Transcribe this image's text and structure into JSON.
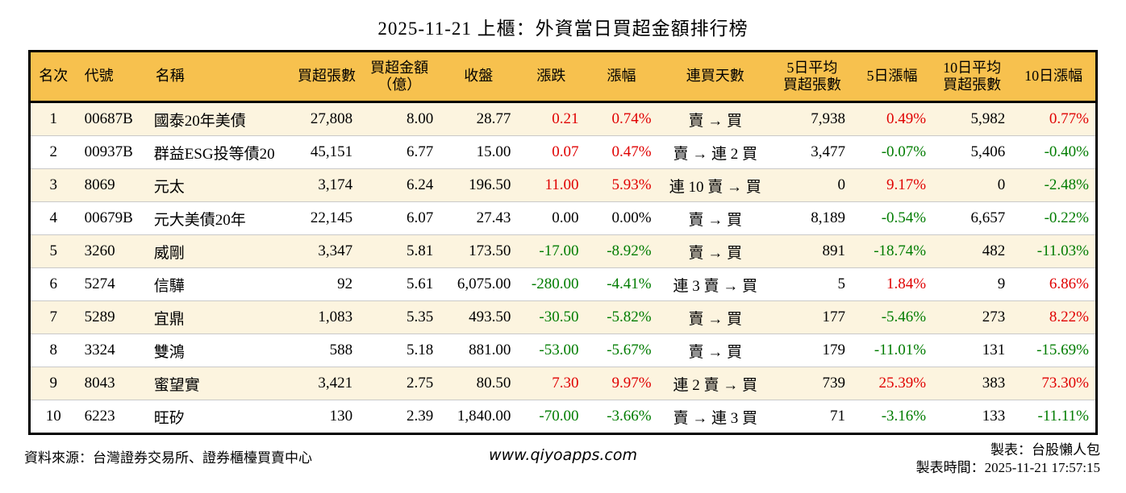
{
  "title": "2025-11-21 上櫃：外資當日買超金額排行榜",
  "colors": {
    "up": "#e00000",
    "down": "#007c00",
    "flat": "#000000",
    "header_bg": "#f7c14e",
    "row_alt_bg": "#fcf4df",
    "border": "#000000"
  },
  "chart_data": {
    "type": "table",
    "title": "2025-11-21 上櫃：外資當日買超金額排行榜",
    "columns": [
      {
        "key": "rank",
        "label_lines": [
          "名次"
        ],
        "colored": false
      },
      {
        "key": "code",
        "label_lines": [
          "代號"
        ],
        "colored": false
      },
      {
        "key": "name",
        "label_lines": [
          "名稱"
        ],
        "colored": false
      },
      {
        "key": "vol",
        "label_lines": [
          "買超張數"
        ],
        "colored": false
      },
      {
        "key": "amt",
        "label_lines": [
          "買超金額",
          "（億）"
        ],
        "colored": false
      },
      {
        "key": "close",
        "label_lines": [
          "收盤"
        ],
        "colored": false
      },
      {
        "key": "chg",
        "label_lines": [
          "漲跌"
        ],
        "colored": true
      },
      {
        "key": "chg_pct",
        "label_lines": [
          "漲幅"
        ],
        "colored": true
      },
      {
        "key": "streak",
        "label_lines": [
          "連買天數"
        ],
        "colored": false
      },
      {
        "key": "avg5",
        "label_lines": [
          "5日平均",
          "買超張數"
        ],
        "colored": false
      },
      {
        "key": "pct5",
        "label_lines": [
          "5日漲幅"
        ],
        "colored": true
      },
      {
        "key": "avg10",
        "label_lines": [
          "10日平均",
          "買超張數"
        ],
        "colored": false
      },
      {
        "key": "pct10",
        "label_lines": [
          "10日漲幅"
        ],
        "colored": true
      }
    ],
    "rows": [
      {
        "rank": "1",
        "code": "00687B",
        "name": "國泰20年美債",
        "vol": "27,808",
        "amt": "8.00",
        "close": "28.77",
        "chg": "0.21",
        "chg_pct": "0.74%",
        "streak": "賣 → 買",
        "avg5": "7,938",
        "pct5": "0.49%",
        "avg10": "5,982",
        "pct10": "0.77%"
      },
      {
        "rank": "2",
        "code": "00937B",
        "name": "群益ESG投等債20",
        "vol": "45,151",
        "amt": "6.77",
        "close": "15.00",
        "chg": "0.07",
        "chg_pct": "0.47%",
        "streak": "賣 → 連 2 買",
        "avg5": "3,477",
        "pct5": "-0.07%",
        "avg10": "5,406",
        "pct10": "-0.40%"
      },
      {
        "rank": "3",
        "code": "8069",
        "name": "元太",
        "vol": "3,174",
        "amt": "6.24",
        "close": "196.50",
        "chg": "11.00",
        "chg_pct": "5.93%",
        "streak": "連 10 賣 → 買",
        "avg5": "0",
        "pct5": "9.17%",
        "avg10": "0",
        "pct10": "-2.48%"
      },
      {
        "rank": "4",
        "code": "00679B",
        "name": "元大美債20年",
        "vol": "22,145",
        "amt": "6.07",
        "close": "27.43",
        "chg": "0.00",
        "chg_pct": "0.00%",
        "streak": "賣 → 買",
        "avg5": "8,189",
        "pct5": "-0.54%",
        "avg10": "6,657",
        "pct10": "-0.22%"
      },
      {
        "rank": "5",
        "code": "3260",
        "name": "威剛",
        "vol": "3,347",
        "amt": "5.81",
        "close": "173.50",
        "chg": "-17.00",
        "chg_pct": "-8.92%",
        "streak": "賣 → 買",
        "avg5": "891",
        "pct5": "-18.74%",
        "avg10": "482",
        "pct10": "-11.03%"
      },
      {
        "rank": "6",
        "code": "5274",
        "name": "信驊",
        "vol": "92",
        "amt": "5.61",
        "close": "6,075.00",
        "chg": "-280.00",
        "chg_pct": "-4.41%",
        "streak": "連 3 賣 → 買",
        "avg5": "5",
        "pct5": "1.84%",
        "avg10": "9",
        "pct10": "6.86%"
      },
      {
        "rank": "7",
        "code": "5289",
        "name": "宜鼎",
        "vol": "1,083",
        "amt": "5.35",
        "close": "493.50",
        "chg": "-30.50",
        "chg_pct": "-5.82%",
        "streak": "賣 → 買",
        "avg5": "177",
        "pct5": "-5.46%",
        "avg10": "273",
        "pct10": "8.22%"
      },
      {
        "rank": "8",
        "code": "3324",
        "name": "雙鴻",
        "vol": "588",
        "amt": "5.18",
        "close": "881.00",
        "chg": "-53.00",
        "chg_pct": "-5.67%",
        "streak": "賣 → 買",
        "avg5": "179",
        "pct5": "-11.01%",
        "avg10": "131",
        "pct10": "-15.69%"
      },
      {
        "rank": "9",
        "code": "8043",
        "name": "蜜望實",
        "vol": "3,421",
        "amt": "2.75",
        "close": "80.50",
        "chg": "7.30",
        "chg_pct": "9.97%",
        "streak": "連 2 賣 → 買",
        "avg5": "739",
        "pct5": "25.39%",
        "avg10": "383",
        "pct10": "73.30%"
      },
      {
        "rank": "10",
        "code": "6223",
        "name": "旺矽",
        "vol": "130",
        "amt": "2.39",
        "close": "1,840.00",
        "chg": "-70.00",
        "chg_pct": "-3.66%",
        "streak": "賣 → 連 3 買",
        "avg5": "71",
        "pct5": "-3.16%",
        "avg10": "133",
        "pct10": "-11.11%"
      }
    ]
  },
  "footer": {
    "source": "資料來源：台灣證券交易所、證券櫃檯買賣中心",
    "website": "www.qiyoapps.com",
    "maker": "製表：台股懶人包",
    "made_time": "製表時間：2025-11-21 17:57:15"
  }
}
